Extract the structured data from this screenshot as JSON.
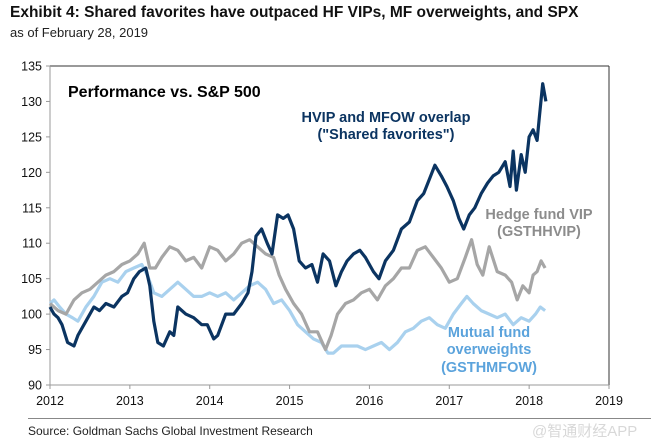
{
  "header": {
    "title": "Exhibit 4: Shared favorites have outpaced HF VIPs, MF overweights, and SPX",
    "subtitle": "as of February 28, 2019"
  },
  "footer": {
    "source": "Source: Goldman Sachs Global Investment Research",
    "watermark": "@智通财经APP"
  },
  "chart_data": {
    "type": "line",
    "title": "Performance vs. S&P 500",
    "xlabel": "",
    "ylabel": "",
    "xlim": [
      2012,
      2019
    ],
    "ylim": [
      90,
      135
    ],
    "x_ticks": [
      "2012",
      "2013",
      "2014",
      "2015",
      "2016",
      "2017",
      "2018",
      "2019"
    ],
    "y_ticks": [
      "90",
      "95",
      "100",
      "105",
      "110",
      "115",
      "120",
      "125",
      "130",
      "135"
    ],
    "grid": false,
    "colors": {
      "shared": "#0b3461",
      "hedge": "#a6a6a6",
      "mutual": "#a9d1ee",
      "mutual_label": "#5ba3dc",
      "hedge_label": "#8c8c8c"
    },
    "series": [
      {
        "name": "HVIP and MFOW overlap (\"Shared favorites\")",
        "label_lines": [
          "HVIP and MFOW overlap",
          "(\"Shared favorites\")"
        ],
        "x": [
          2012.0,
          2012.05,
          2012.1,
          2012.15,
          2012.22,
          2012.3,
          2012.35,
          2012.45,
          2012.55,
          2012.62,
          2012.7,
          2012.8,
          2012.9,
          2012.97,
          2013.05,
          2013.12,
          2013.2,
          2013.25,
          2013.3,
          2013.35,
          2013.42,
          2013.5,
          2013.55,
          2013.6,
          2013.7,
          2013.8,
          2013.9,
          2013.97,
          2014.05,
          2014.1,
          2014.2,
          2014.3,
          2014.4,
          2014.48,
          2014.53,
          2014.58,
          2014.65,
          2014.72,
          2014.78,
          2014.85,
          2014.92,
          2014.98,
          2015.05,
          2015.12,
          2015.2,
          2015.28,
          2015.35,
          2015.42,
          2015.5,
          2015.58,
          2015.65,
          2015.72,
          2015.8,
          2015.88,
          2015.95,
          2016.05,
          2016.12,
          2016.2,
          2016.3,
          2016.4,
          2016.5,
          2016.6,
          2016.68,
          2016.75,
          2016.82,
          2016.9,
          2016.97,
          2017.05,
          2017.12,
          2017.18,
          2017.25,
          2017.32,
          2017.4,
          2017.48,
          2017.55,
          2017.62,
          2017.7,
          2017.76,
          2017.8,
          2017.84,
          2017.9,
          2017.95,
          2018.0,
          2018.05,
          2018.1,
          2018.13,
          2018.17,
          2018.21
        ],
        "values": [
          101,
          100,
          99.5,
          98.5,
          96,
          95.5,
          97,
          99,
          101,
          100.5,
          101.5,
          101,
          102.5,
          103,
          105,
          106,
          106.5,
          104,
          99,
          96,
          95.5,
          97.5,
          97,
          101,
          100,
          99.5,
          98.5,
          98.5,
          96.5,
          97,
          100,
          100,
          101.5,
          103,
          106,
          111,
          112,
          110,
          108.5,
          114,
          113.5,
          114,
          112,
          107.5,
          106.5,
          107,
          104.5,
          108.5,
          107.5,
          104,
          106,
          107.5,
          108.5,
          109,
          108,
          106,
          105,
          107.5,
          109,
          112,
          113,
          116,
          117,
          119,
          121,
          119.5,
          118,
          116,
          113.5,
          112,
          114,
          115,
          117,
          118.5,
          119.5,
          120,
          121.5,
          118,
          123,
          117.5,
          122.5,
          120,
          125,
          126,
          124.5,
          128,
          132.5,
          130
        ]
      },
      {
        "name": "Hedge fund VIP (GSTHHVIP)",
        "label_lines": [
          "Hedge fund VIP",
          "(GSTHHVIP)"
        ],
        "x": [
          2012.0,
          2012.1,
          2012.2,
          2012.3,
          2012.4,
          2012.5,
          2012.6,
          2012.7,
          2012.8,
          2012.9,
          2013.0,
          2013.1,
          2013.18,
          2013.25,
          2013.32,
          2013.4,
          2013.5,
          2013.6,
          2013.7,
          2013.8,
          2013.9,
          2014.0,
          2014.1,
          2014.2,
          2014.3,
          2014.4,
          2014.5,
          2014.6,
          2014.7,
          2014.8,
          2014.87,
          2014.95,
          2015.05,
          2015.15,
          2015.25,
          2015.35,
          2015.45,
          2015.52,
          2015.6,
          2015.7,
          2015.8,
          2015.9,
          2016.0,
          2016.1,
          2016.2,
          2016.3,
          2016.4,
          2016.5,
          2016.6,
          2016.7,
          2016.8,
          2016.9,
          2017.0,
          2017.1,
          2017.2,
          2017.28,
          2017.35,
          2017.42,
          2017.5,
          2017.6,
          2017.7,
          2017.78,
          2017.85,
          2017.92,
          2018.0,
          2018.05,
          2018.1,
          2018.15,
          2018.2
        ],
        "values": [
          101.5,
          100.5,
          100,
          102,
          103,
          103.5,
          104.5,
          105.5,
          106,
          107,
          107.5,
          108.5,
          110,
          106.5,
          106.5,
          108,
          109.5,
          109,
          107.5,
          108,
          106.5,
          109.5,
          109,
          107.5,
          108.5,
          110,
          110.5,
          109.5,
          108.5,
          108,
          105.5,
          103.5,
          101.5,
          100,
          97.5,
          97.5,
          95,
          97,
          100,
          101.5,
          102,
          103,
          103.5,
          102,
          104,
          105,
          106.5,
          106.5,
          109,
          109.5,
          108,
          106.5,
          104.5,
          105,
          108,
          110.5,
          107,
          105.5,
          109.5,
          106,
          105.5,
          104.5,
          102,
          104,
          103,
          105.5,
          106,
          107.5,
          106.5
        ]
      },
      {
        "name": "Mutual fund overweights (GSTHMFOW)",
        "label_lines": [
          "Mutual fund",
          "overweights",
          "(GSTHMFOW)"
        ],
        "x": [
          2012.0,
          2012.05,
          2012.12,
          2012.2,
          2012.28,
          2012.35,
          2012.45,
          2012.55,
          2012.65,
          2012.75,
          2012.85,
          2012.95,
          2013.05,
          2013.15,
          2013.22,
          2013.3,
          2013.4,
          2013.5,
          2013.6,
          2013.7,
          2013.8,
          2013.9,
          2014.0,
          2014.1,
          2014.2,
          2014.3,
          2014.4,
          2014.5,
          2014.6,
          2014.7,
          2014.8,
          2014.9,
          2015.0,
          2015.1,
          2015.2,
          2015.3,
          2015.4,
          2015.48,
          2015.55,
          2015.65,
          2015.75,
          2015.85,
          2015.95,
          2016.05,
          2016.15,
          2016.25,
          2016.35,
          2016.45,
          2016.55,
          2016.65,
          2016.75,
          2016.85,
          2016.95,
          2017.05,
          2017.15,
          2017.22,
          2017.3,
          2017.4,
          2017.5,
          2017.6,
          2017.7,
          2017.8,
          2017.9,
          2018.0,
          2018.08,
          2018.14,
          2018.2
        ],
        "values": [
          101.5,
          102,
          101,
          100,
          99.5,
          99,
          101,
          102.5,
          104.5,
          105,
          104.5,
          106,
          106.5,
          107,
          105.5,
          103,
          102.5,
          103.5,
          104.5,
          103.5,
          102.5,
          102.5,
          103,
          102.5,
          103,
          102,
          103,
          104,
          104.5,
          103.5,
          101.5,
          102,
          100.5,
          98.5,
          97.5,
          96.5,
          96,
          94.5,
          94.5,
          95.5,
          95.5,
          95.5,
          95,
          95.5,
          96,
          95,
          96,
          97.5,
          98,
          99,
          99.5,
          98.5,
          98,
          100,
          101.5,
          102.5,
          101.5,
          100.5,
          100,
          99.5,
          100,
          98.5,
          99.5,
          99,
          100,
          101,
          100.5
        ]
      }
    ]
  }
}
